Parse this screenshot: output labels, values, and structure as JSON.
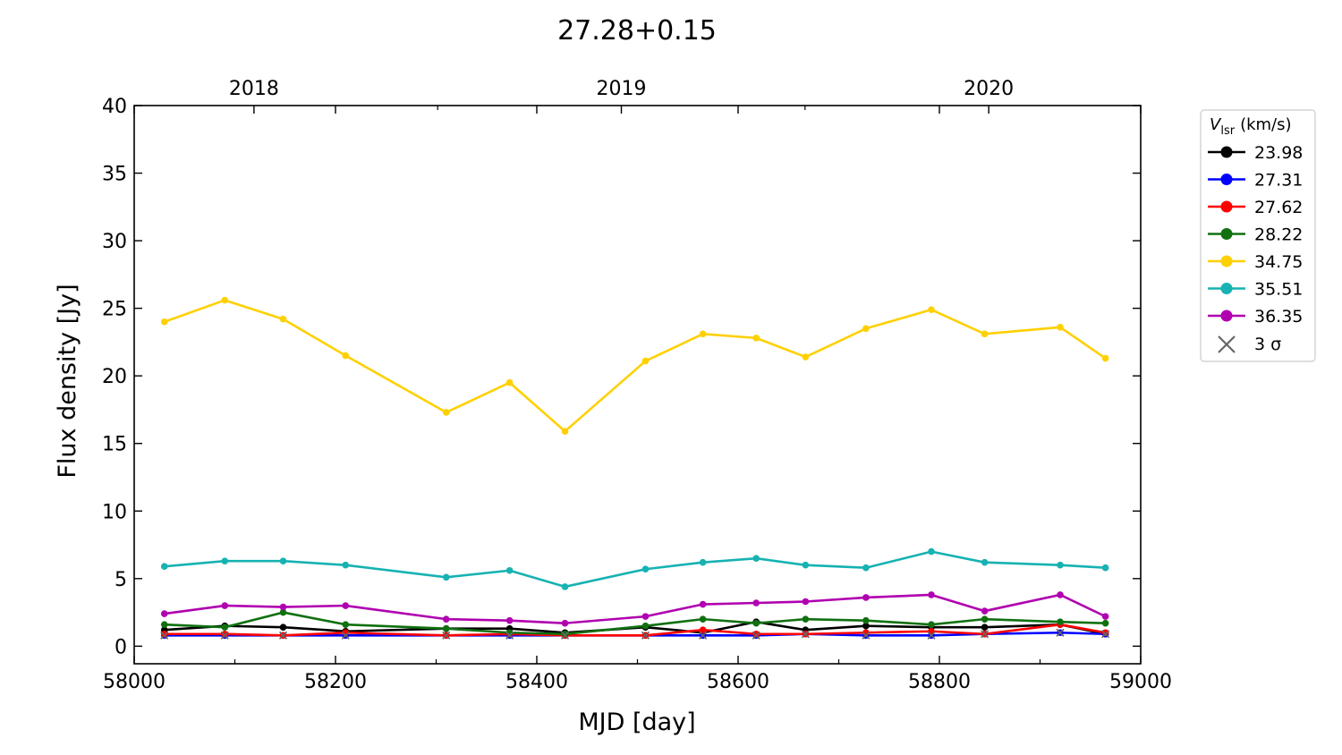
{
  "chart_data": {
    "type": "line",
    "title": "27.28+0.15",
    "xlabel": "MJD [day]",
    "ylabel": "Flux density [Jy]",
    "xlim": [
      58000,
      59000
    ],
    "ylim": [
      -1.3,
      40
    ],
    "x_ticks": [
      58000,
      58200,
      58400,
      58600,
      58800,
      59000
    ],
    "y_ticks": [
      0,
      5,
      10,
      15,
      20,
      25,
      30,
      35,
      40
    ],
    "top_axis": {
      "ticks": [
        {
          "label": "2018",
          "mjd": 58119
        },
        {
          "label": "2019",
          "mjd": 58484
        },
        {
          "label": "2020",
          "mjd": 58849
        }
      ]
    },
    "legend": {
      "title_symbol": "V",
      "title_sub": "lsr",
      "title_unit": "(km/s)",
      "position": "outside-right-top",
      "sigma_label": "3 σ",
      "sigma_color": "#666666"
    },
    "x": [
      58030,
      58090,
      58148,
      58210,
      58310,
      58373,
      58428,
      58508,
      58565,
      58618,
      58667,
      58727,
      58792,
      58845,
      58920,
      58965
    ],
    "series": [
      {
        "name": "23.98",
        "color": "#000000",
        "values": [
          1.2,
          1.5,
          1.4,
          1.1,
          1.3,
          1.3,
          1.0,
          1.4,
          1.0,
          1.8,
          1.2,
          1.5,
          1.4,
          1.4,
          1.6,
          0.9
        ]
      },
      {
        "name": "27.31",
        "color": "#0000ff",
        "values": [
          0.8,
          0.8,
          0.8,
          0.8,
          0.8,
          0.8,
          0.8,
          0.8,
          0.8,
          0.8,
          0.9,
          0.8,
          0.8,
          0.9,
          1.0,
          0.9
        ]
      },
      {
        "name": "27.62",
        "color": "#ff0000",
        "values": [
          0.9,
          0.9,
          0.8,
          1.0,
          0.8,
          0.9,
          0.8,
          0.8,
          1.2,
          0.9,
          0.9,
          1.0,
          1.1,
          0.9,
          1.6,
          1.0
        ]
      },
      {
        "name": "28.22",
        "color": "#107010",
        "values": [
          1.6,
          1.4,
          2.5,
          1.6,
          1.3,
          1.0,
          0.9,
          1.5,
          2.0,
          1.7,
          2.0,
          1.9,
          1.6,
          2.0,
          1.8,
          1.7
        ]
      },
      {
        "name": "34.75",
        "color": "#ffd000",
        "values": [
          24.0,
          25.6,
          24.2,
          21.5,
          17.3,
          19.5,
          15.9,
          21.1,
          23.1,
          22.8,
          21.4,
          23.5,
          24.9,
          23.1,
          23.6,
          21.3
        ]
      },
      {
        "name": "35.51",
        "color": "#17b2b2",
        "values": [
          5.9,
          6.3,
          6.3,
          6.0,
          5.1,
          5.6,
          4.4,
          5.7,
          6.2,
          6.5,
          6.0,
          5.8,
          7.0,
          6.2,
          6.0,
          5.8
        ]
      },
      {
        "name": "36.35",
        "color": "#b000b0",
        "values": [
          2.4,
          3.0,
          2.9,
          3.0,
          2.0,
          1.9,
          1.7,
          2.2,
          3.1,
          3.2,
          3.3,
          3.6,
          3.8,
          2.6,
          3.8,
          2.2
        ]
      }
    ],
    "upper_limits": [
      {
        "series": "27.31",
        "x": [
          58030,
          58090,
          58148,
          58210,
          58310,
          58373,
          58428,
          58508,
          58565,
          58618,
          58667,
          58727,
          58792,
          58845,
          58920,
          58965
        ],
        "values": [
          0.8,
          0.8,
          0.8,
          0.8,
          0.8,
          0.8,
          0.8,
          0.8,
          0.8,
          0.8,
          0.9,
          0.8,
          0.8,
          0.9,
          1.0,
          0.9
        ]
      }
    ],
    "grid": false
  }
}
